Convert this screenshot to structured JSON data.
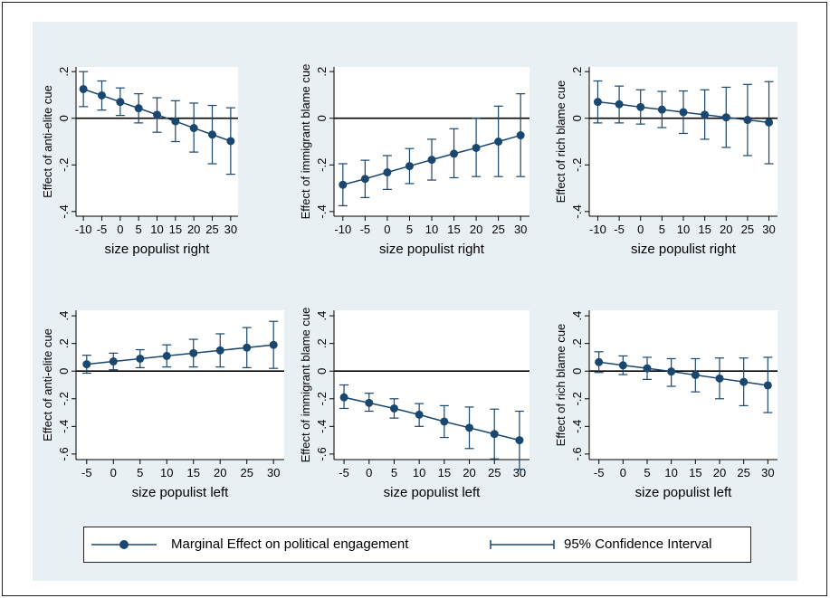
{
  "colors": {
    "background": "#e9f0f3",
    "plot_bg": "#ffffff",
    "series": "#1a476f",
    "zero_line": "#000000"
  },
  "legend": {
    "marker_label": "Marginal Effect on political engagement",
    "ci_label": "95% Confidence Interval"
  },
  "chart_data": [
    {
      "type": "line",
      "panel": "top-left",
      "xlabel": "size populist right",
      "ylabel": "Effect of anti-elite cue",
      "x": [
        -10,
        -5,
        0,
        5,
        10,
        15,
        20,
        25,
        30
      ],
      "y": [
        0.125,
        0.098,
        0.07,
        0.043,
        0.015,
        -0.013,
        -0.042,
        -0.07,
        -0.098
      ],
      "ci_low": [
        0.05,
        0.035,
        0.012,
        -0.02,
        -0.06,
        -0.1,
        -0.145,
        -0.195,
        -0.24
      ],
      "ci_high": [
        0.2,
        0.16,
        0.13,
        0.105,
        0.088,
        0.075,
        0.065,
        0.055,
        0.045
      ],
      "xticks": [
        -10,
        -5,
        0,
        5,
        10,
        15,
        20,
        25,
        30
      ],
      "xtick_labels": [
        "-10",
        "-5",
        "0",
        "5",
        "10",
        "15",
        "20",
        "25",
        "30"
      ],
      "yticks": [
        0.2,
        0,
        -0.2,
        -0.4
      ],
      "ytick_labels": [
        ".2",
        "0",
        "-.2",
        "-.4"
      ],
      "ylim": [
        -0.42,
        0.22
      ],
      "xlim": [
        -12,
        32
      ],
      "grid": false
    },
    {
      "type": "line",
      "panel": "top-middle",
      "xlabel": "size populist right",
      "ylabel": "Effect of immigrant blame cue",
      "x": [
        -10,
        -5,
        0,
        5,
        10,
        15,
        20,
        25,
        30
      ],
      "y": [
        -0.285,
        -0.26,
        -0.232,
        -0.205,
        -0.178,
        -0.152,
        -0.127,
        -0.1,
        -0.073
      ],
      "ci_low": [
        -0.375,
        -0.34,
        -0.305,
        -0.28,
        -0.265,
        -0.255,
        -0.25,
        -0.25,
        -0.25
      ],
      "ci_high": [
        -0.195,
        -0.18,
        -0.16,
        -0.13,
        -0.09,
        -0.045,
        0.0,
        0.052,
        0.105
      ],
      "xticks": [
        -10,
        -5,
        0,
        5,
        10,
        15,
        20,
        25,
        30
      ],
      "xtick_labels": [
        "-10",
        "-5",
        "0",
        "5",
        "10",
        "15",
        "20",
        "25",
        "30"
      ],
      "yticks": [
        0.2,
        0,
        -0.2,
        -0.4
      ],
      "ytick_labels": [
        ".2",
        "0",
        "-.2",
        "-.4"
      ],
      "ylim": [
        -0.42,
        0.22
      ],
      "xlim": [
        -12,
        32
      ],
      "grid": false
    },
    {
      "type": "line",
      "panel": "top-right",
      "xlabel": "size populist right",
      "ylabel": "Effect of rich blame cue",
      "x": [
        -10,
        -5,
        0,
        5,
        10,
        15,
        20,
        25,
        30
      ],
      "y": [
        0.07,
        0.06,
        0.048,
        0.037,
        0.026,
        0.015,
        0.004,
        -0.007,
        -0.018
      ],
      "ci_low": [
        -0.02,
        -0.02,
        -0.025,
        -0.04,
        -0.065,
        -0.09,
        -0.125,
        -0.16,
        -0.195
      ],
      "ci_high": [
        0.16,
        0.138,
        0.122,
        0.115,
        0.117,
        0.122,
        0.133,
        0.145,
        0.157
      ],
      "xticks": [
        -10,
        -5,
        0,
        5,
        10,
        15,
        20,
        25,
        30
      ],
      "xtick_labels": [
        "-10",
        "-5",
        "0",
        "5",
        "10",
        "15",
        "20",
        "25",
        "30"
      ],
      "yticks": [
        0.2,
        0,
        -0.2,
        -0.4
      ],
      "ytick_labels": [
        ".2",
        "0",
        "-.2",
        "-.4"
      ],
      "ylim": [
        -0.42,
        0.22
      ],
      "xlim": [
        -12,
        32
      ],
      "grid": false
    },
    {
      "type": "line",
      "panel": "bottom-left",
      "xlabel": "size populist left",
      "ylabel": "Effect of anti-elite cue",
      "x": [
        -5,
        0,
        5,
        10,
        15,
        20,
        25,
        30
      ],
      "y": [
        0.05,
        0.07,
        0.09,
        0.11,
        0.13,
        0.15,
        0.17,
        0.19
      ],
      "ci_low": [
        -0.015,
        0.01,
        0.025,
        0.03,
        0.03,
        0.03,
        0.025,
        0.02
      ],
      "ci_high": [
        0.115,
        0.13,
        0.155,
        0.19,
        0.23,
        0.27,
        0.315,
        0.36
      ],
      "xticks": [
        -5,
        0,
        5,
        10,
        15,
        20,
        25,
        30
      ],
      "xtick_labels": [
        "-5",
        "0",
        "5",
        "10",
        "15",
        "20",
        "25",
        "30"
      ],
      "yticks": [
        0.4,
        0.2,
        0,
        -0.2,
        -0.4,
        -0.6
      ],
      "ytick_labels": [
        ".4",
        ".2",
        "0",
        "-.2",
        "-.4",
        "-.6"
      ],
      "ylim": [
        -0.64,
        0.44
      ],
      "xlim": [
        -7,
        32
      ],
      "grid": false
    },
    {
      "type": "line",
      "panel": "bottom-middle",
      "xlabel": "size populist left",
      "ylabel": "Effect of immigrant blame cue",
      "x": [
        -5,
        0,
        5,
        10,
        15,
        20,
        25,
        30
      ],
      "y": [
        -0.19,
        -0.23,
        -0.27,
        -0.315,
        -0.365,
        -0.41,
        -0.455,
        -0.5
      ],
      "ci_low": [
        -0.27,
        -0.29,
        -0.34,
        -0.4,
        -0.48,
        -0.56,
        -0.635,
        -0.71
      ],
      "ci_high": [
        -0.1,
        -0.16,
        -0.2,
        -0.235,
        -0.25,
        -0.26,
        -0.275,
        -0.29
      ],
      "xticks": [
        -5,
        0,
        5,
        10,
        15,
        20,
        25,
        30
      ],
      "xtick_labels": [
        "-5",
        "0",
        "5",
        "10",
        "15",
        "20",
        "25",
        "30"
      ],
      "yticks": [
        0.4,
        0.2,
        0,
        -0.2,
        -0.4,
        -0.6
      ],
      "ytick_labels": [
        ".4",
        ".2",
        "0",
        "-.2",
        "-.4",
        "-.6"
      ],
      "ylim": [
        -0.64,
        0.44
      ],
      "xlim": [
        -7,
        32
      ],
      "grid": false
    },
    {
      "type": "line",
      "panel": "bottom-right",
      "xlabel": "size populist left",
      "ylabel": "Effect of rich blame cue",
      "x": [
        -5,
        0,
        5,
        10,
        15,
        20,
        25,
        30
      ],
      "y": [
        0.065,
        0.042,
        0.02,
        -0.003,
        -0.028,
        -0.053,
        -0.078,
        -0.103
      ],
      "ci_low": [
        -0.01,
        -0.025,
        -0.06,
        -0.11,
        -0.15,
        -0.2,
        -0.25,
        -0.3
      ],
      "ci_high": [
        0.14,
        0.11,
        0.1,
        0.09,
        0.09,
        0.095,
        0.095,
        0.1
      ],
      "xticks": [
        -5,
        0,
        5,
        10,
        15,
        20,
        25,
        30
      ],
      "xtick_labels": [
        "-5",
        "0",
        "5",
        "10",
        "15",
        "20",
        "25",
        "30"
      ],
      "yticks": [
        0.4,
        0.2,
        0,
        -0.2,
        -0.4,
        -0.6
      ],
      "ytick_labels": [
        ".4",
        ".2",
        "0",
        "-.2",
        "-.4",
        "-.6"
      ],
      "ylim": [
        -0.64,
        0.44
      ],
      "xlim": [
        -7,
        32
      ],
      "grid": false
    }
  ]
}
